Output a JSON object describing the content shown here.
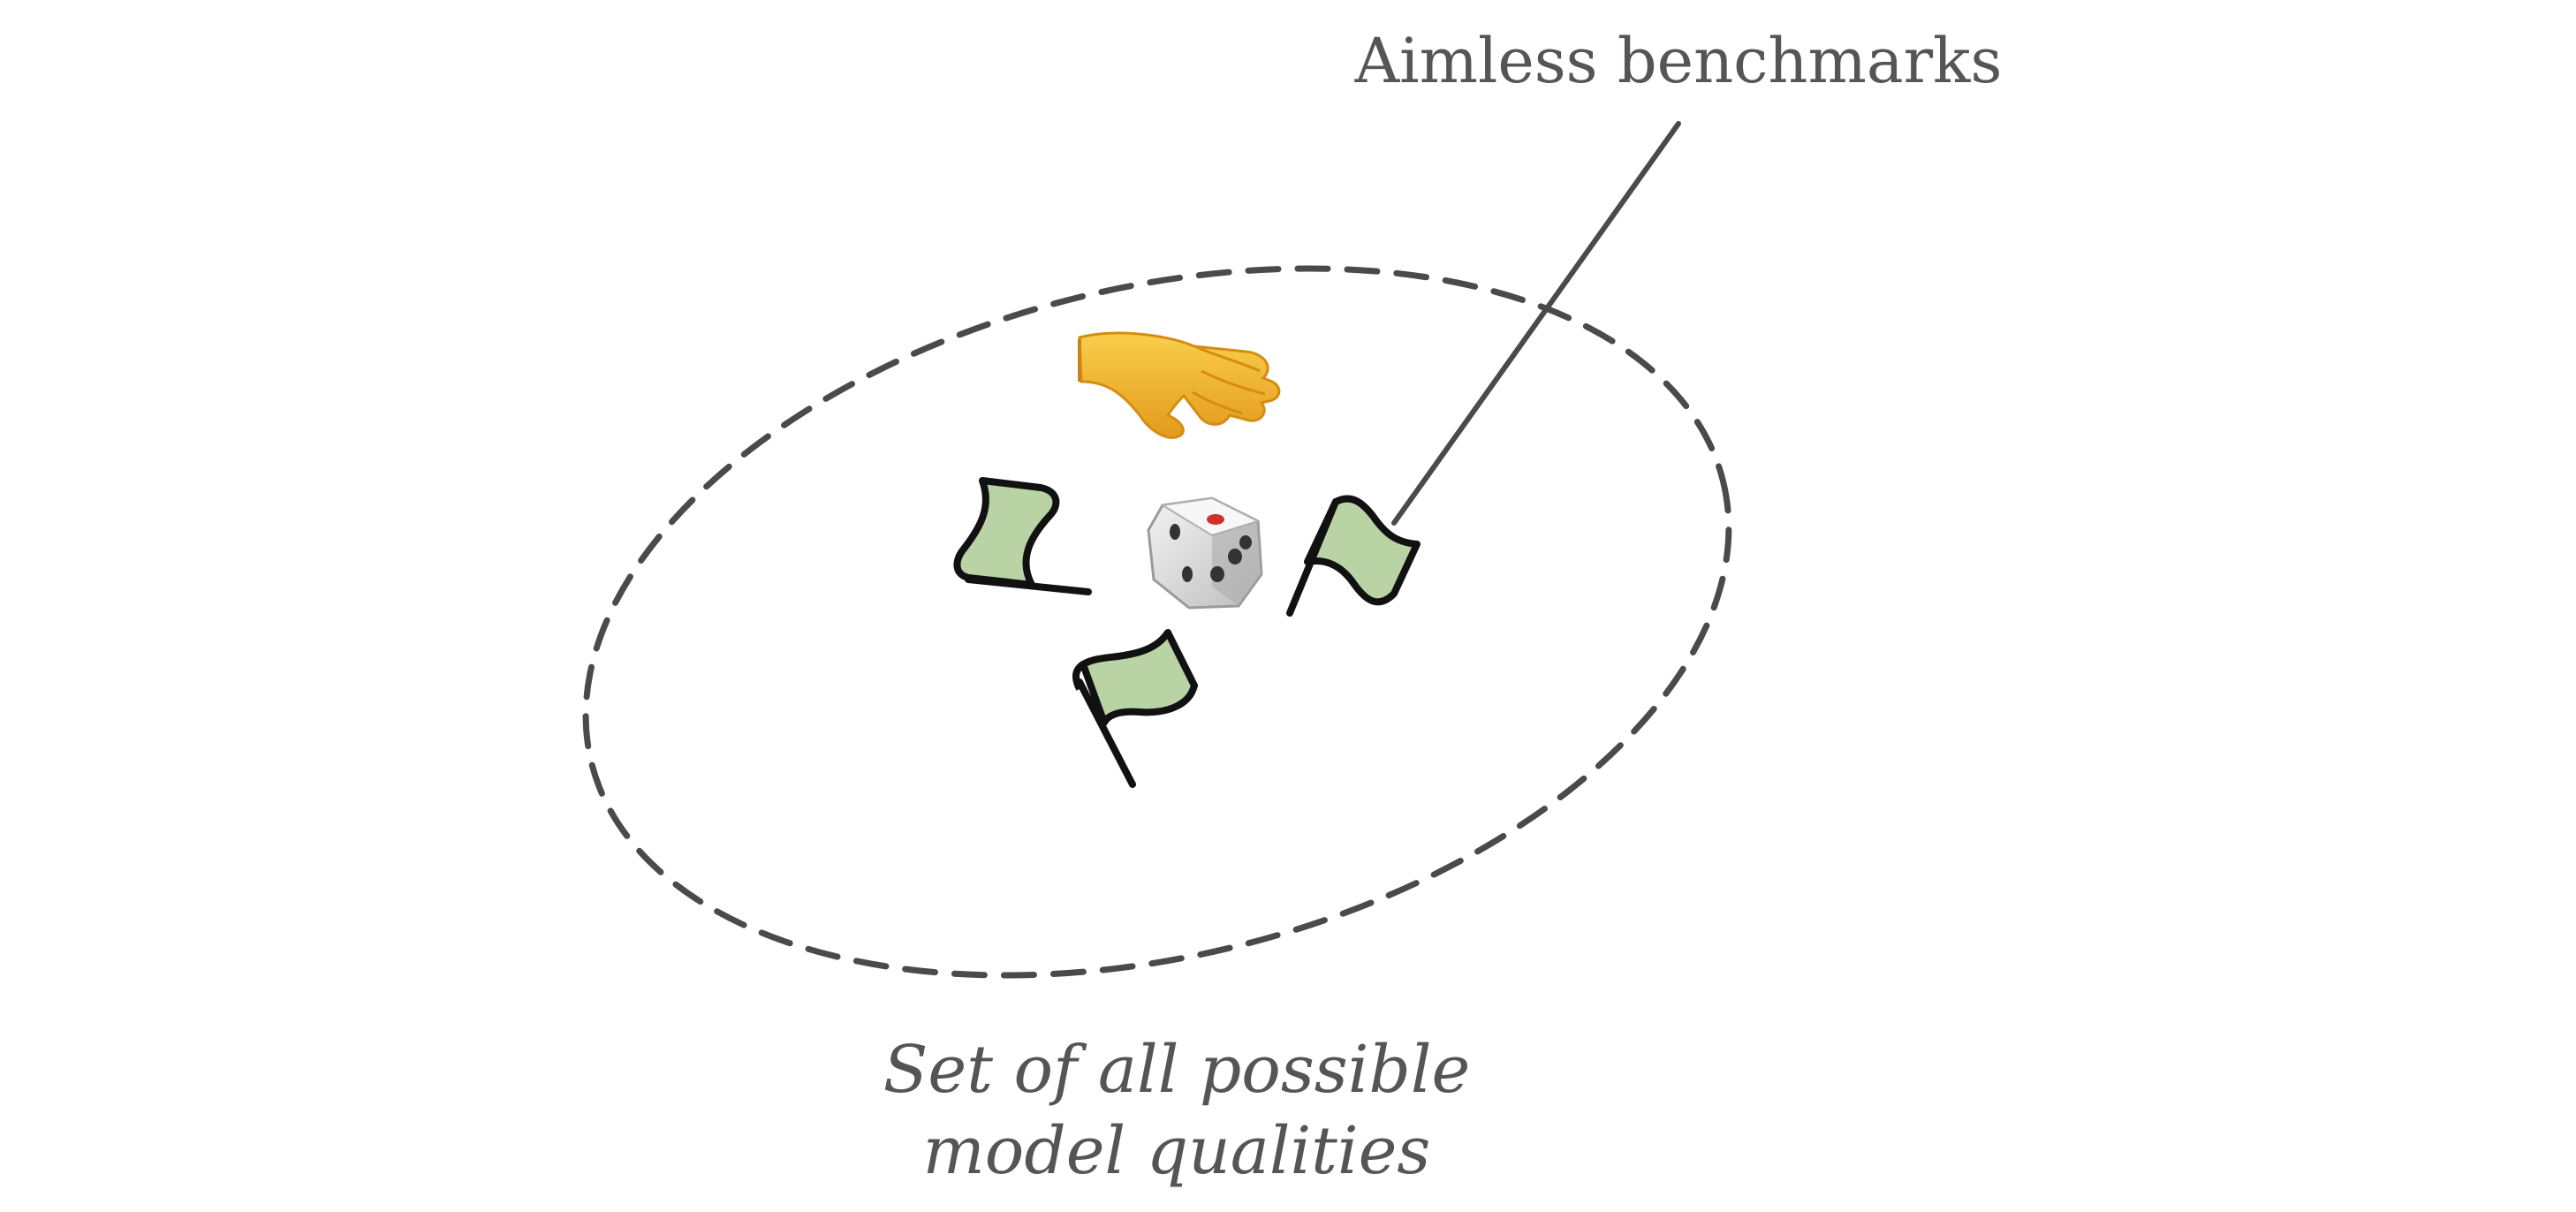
{
  "annotations": {
    "pointer_label": "Aimless benchmarks",
    "set_label_line1": "Set of all possible",
    "set_label_line2": "model qualities"
  },
  "icons": {
    "hand": "hand-reaching-icon",
    "die": "die-icon",
    "flag": "flag-icon"
  },
  "colors": {
    "text": "#555555",
    "ellipse_stroke": "#4a4a4a",
    "flag_fill": "#b9d3a4",
    "flag_stroke": "#111111",
    "hand_fill": "#f4b82c",
    "die_fill": "#e6e6e6",
    "die_pip": "#333333",
    "die_red_pip": "#d0312d"
  }
}
